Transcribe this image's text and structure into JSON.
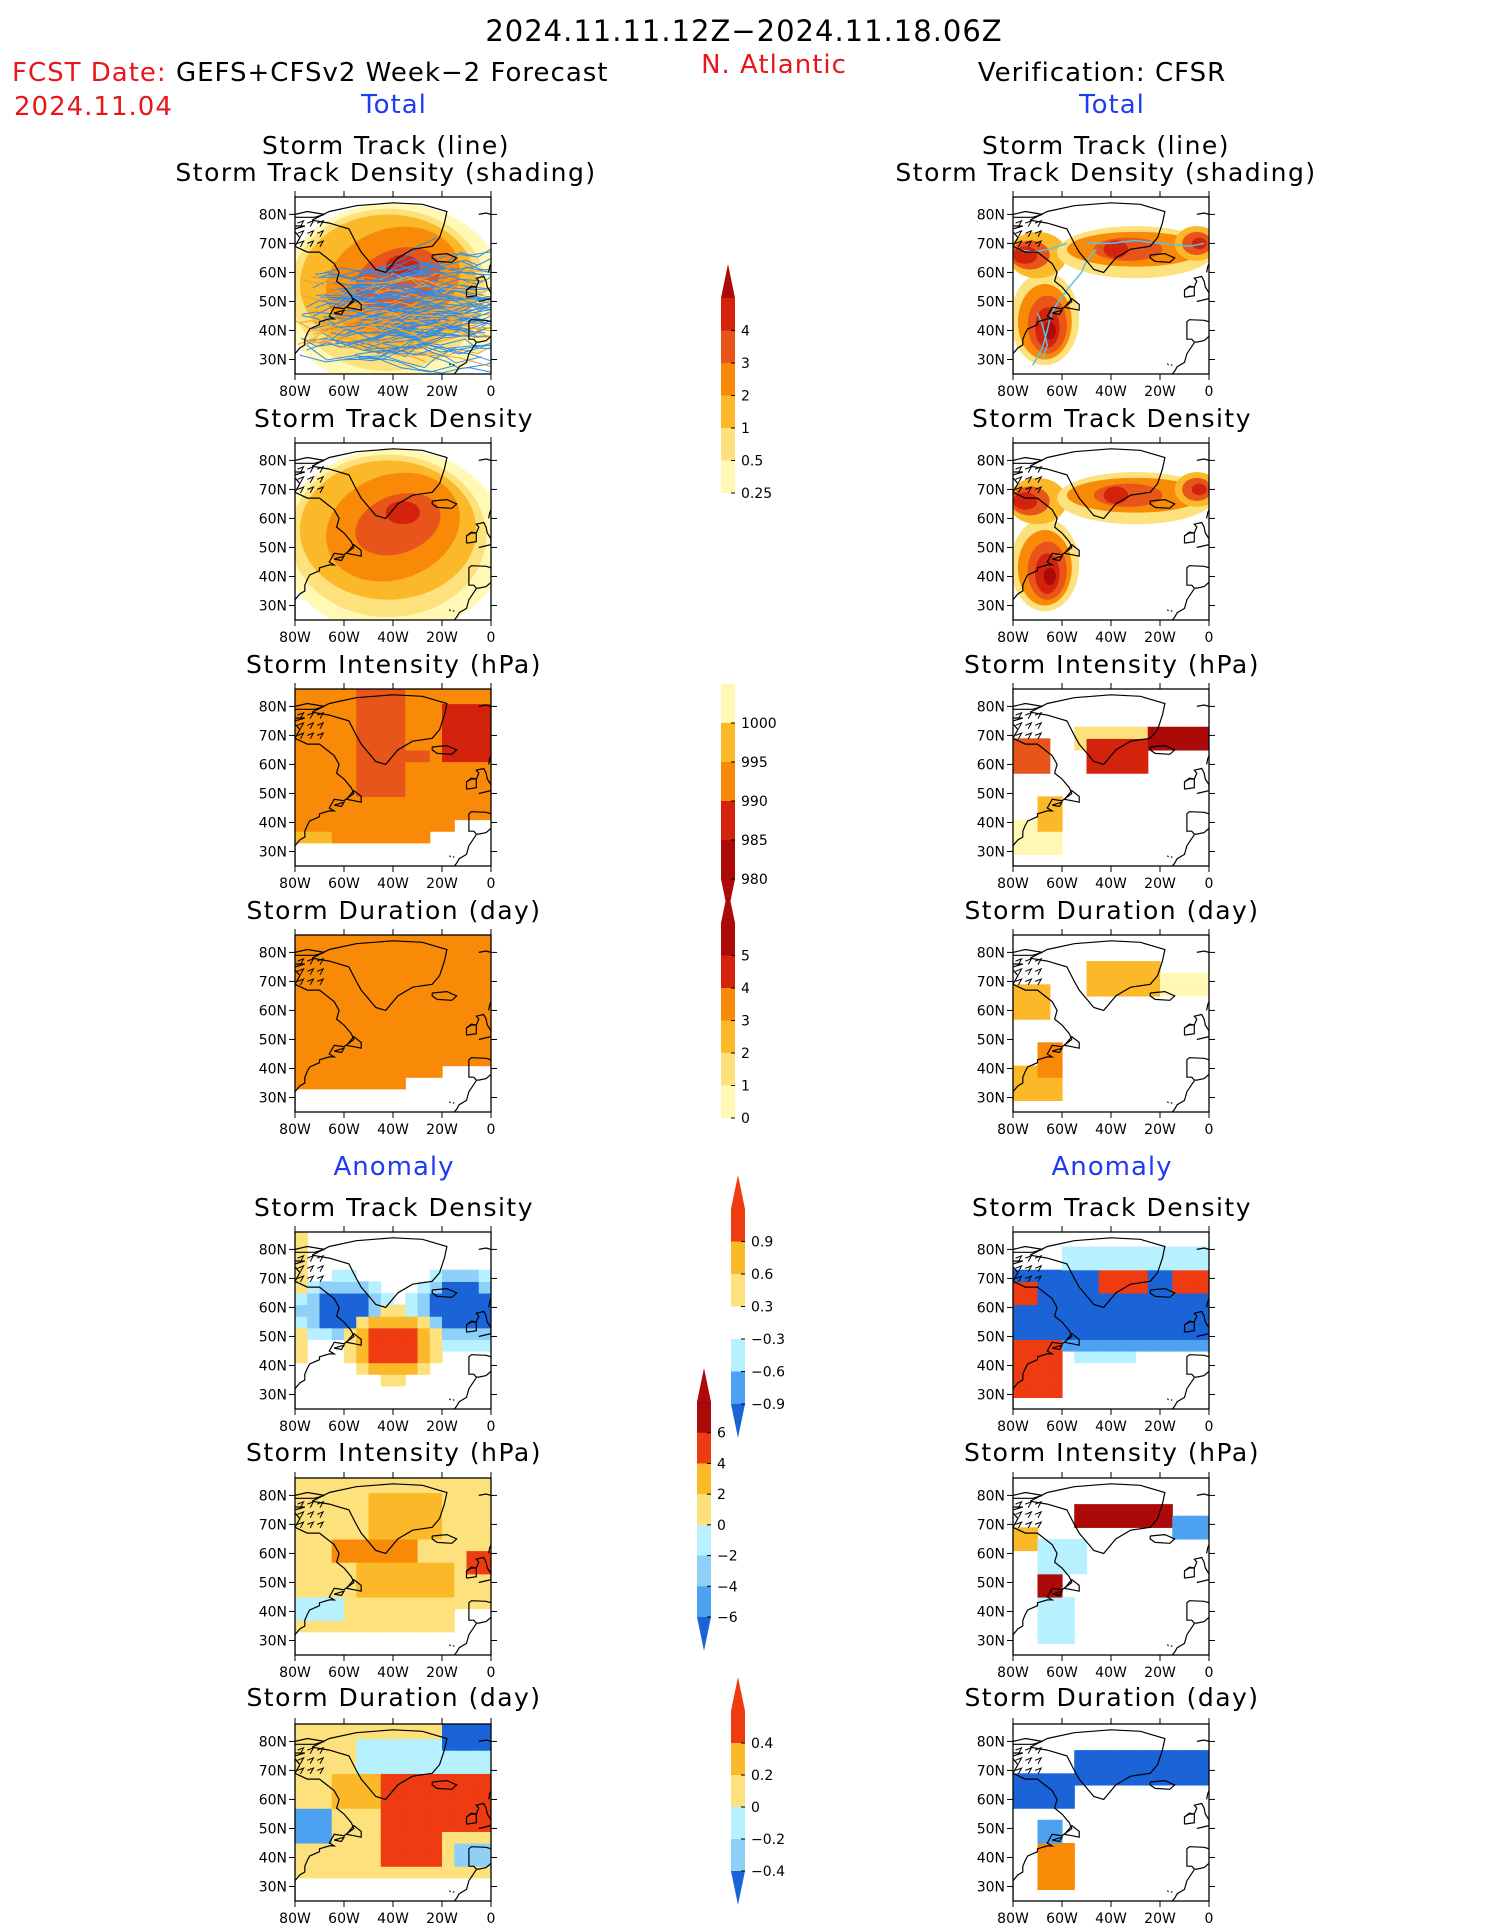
{
  "header": {
    "date_range": "2024.11.11.12Z−2024.11.18.06Z",
    "region": "N. Atlantic",
    "fcst_label": "FCST Date:",
    "fcst_model": "GEFS+CFSv2 Week−2 Forecast",
    "fcst_date": "2024.11.04",
    "verification": "Verification: CFSR",
    "total_left": "Total",
    "total_right": "Total",
    "anomaly_left": "Anomaly",
    "anomaly_right": "Anomaly"
  },
  "panel_titles": {
    "track_line": "Storm Track (line)",
    "track_shading": "Storm Track Density (shading)",
    "density": "Storm Track Density",
    "intensity": "Storm Intensity (hPa)",
    "duration": "Storm Duration (day)"
  },
  "axes": {
    "lat_ticks": [
      "80N",
      "70N",
      "60N",
      "50N",
      "40N",
      "30N"
    ],
    "lon_ticks": [
      "80W",
      "60W",
      "40W",
      "20W",
      "0"
    ]
  },
  "colors": {
    "total": [
      "#fff9b5",
      "#fde17c",
      "#fbb828",
      "#f88a08",
      "#e8551b",
      "#d3230d",
      "#ab0a08"
    ],
    "anom_pos": [
      "#fde17c",
      "#fbb828",
      "#f88a08",
      "#ee3b12"
    ],
    "anom_neg": [
      "#b7f1ff",
      "#8fd0f8",
      "#4ca2f0",
      "#1a64d8"
    ],
    "track_forecast": "#2b8cf0",
    "track_forecast_alt": "#f0a030",
    "track_obs": "#5bc3e6"
  },
  "colorbars": {
    "density": {
      "labels": [
        "4",
        "3",
        "2",
        "1",
        "0.5",
        "0.25"
      ]
    },
    "intensity": {
      "labels": [
        "1000",
        "995",
        "990",
        "985",
        "980"
      ]
    },
    "duration": {
      "labels": [
        "5",
        "4",
        "3",
        "2",
        "1",
        "0"
      ]
    },
    "density_anom": {
      "labels": [
        "0.9",
        "0.6",
        "0.3",
        "−0.3",
        "−0.6",
        "−0.9"
      ]
    },
    "intensity_anom": {
      "labels": [
        "6",
        "4",
        "2",
        "0",
        "−2",
        "−4",
        "−6"
      ]
    },
    "duration_anom": {
      "labels": [
        "0.4",
        "0.2",
        "0",
        "−0.2",
        "−0.4"
      ]
    }
  },
  "chart_data": [
    {
      "type": "heatmap",
      "title": "Storm Track (line) / Storm Track Density (shading)",
      "side": "forecast",
      "levels": [
        0.25,
        0.5,
        1,
        2,
        3,
        4
      ],
      "xlim": [
        -80,
        0
      ],
      "ylim": [
        25,
        85
      ]
    },
    {
      "type": "heatmap",
      "title": "Storm Track (line) / Storm Track Density (shading)",
      "side": "verification",
      "levels": [
        0.25,
        0.5,
        1,
        2,
        3,
        4
      ],
      "xlim": [
        -80,
        0
      ],
      "ylim": [
        25,
        85
      ]
    },
    {
      "type": "heatmap",
      "title": "Storm Track Density",
      "side": "forecast",
      "levels": [
        0.25,
        0.5,
        1,
        2,
        3,
        4
      ],
      "peak": {
        "lon": -40,
        "lat": 58
      }
    },
    {
      "type": "heatmap",
      "title": "Storm Track Density",
      "side": "verification",
      "levels": [
        0.25,
        0.5,
        1,
        2,
        3,
        4
      ]
    },
    {
      "type": "heatmap",
      "title": "Storm Intensity (hPa)",
      "side": "forecast",
      "levels": [
        980,
        985,
        990,
        995,
        1000
      ]
    },
    {
      "type": "heatmap",
      "title": "Storm Intensity (hPa)",
      "side": "verification",
      "levels": [
        980,
        985,
        990,
        995,
        1000
      ]
    },
    {
      "type": "heatmap",
      "title": "Storm Duration (day)",
      "side": "forecast",
      "levels": [
        0,
        1,
        2,
        3,
        4,
        5
      ]
    },
    {
      "type": "heatmap",
      "title": "Storm Duration (day)",
      "side": "verification",
      "levels": [
        0,
        1,
        2,
        3,
        4,
        5
      ]
    },
    {
      "type": "heatmap",
      "title": "Storm Track Density",
      "side": "forecast anomaly",
      "levels": [
        -0.9,
        -0.6,
        -0.3,
        0.3,
        0.6,
        0.9
      ]
    },
    {
      "type": "heatmap",
      "title": "Storm Track Density",
      "side": "verification anomaly",
      "levels": [
        -0.9,
        -0.6,
        -0.3,
        0.3,
        0.6,
        0.9
      ]
    },
    {
      "type": "heatmap",
      "title": "Storm Intensity (hPa)",
      "side": "forecast anomaly",
      "levels": [
        -6,
        -4,
        -2,
        0,
        2,
        4,
        6
      ]
    },
    {
      "type": "heatmap",
      "title": "Storm Intensity (hPa)",
      "side": "verification anomaly",
      "levels": [
        -6,
        -4,
        -2,
        0,
        2,
        4,
        6
      ]
    },
    {
      "type": "heatmap",
      "title": "Storm Duration (day)",
      "side": "forecast anomaly",
      "levels": [
        -0.4,
        -0.2,
        0,
        0.2,
        0.4
      ]
    },
    {
      "type": "heatmap",
      "title": "Storm Duration (day)",
      "side": "verification anomaly",
      "levels": [
        -0.4,
        -0.2,
        0,
        0.2,
        0.4
      ]
    }
  ]
}
